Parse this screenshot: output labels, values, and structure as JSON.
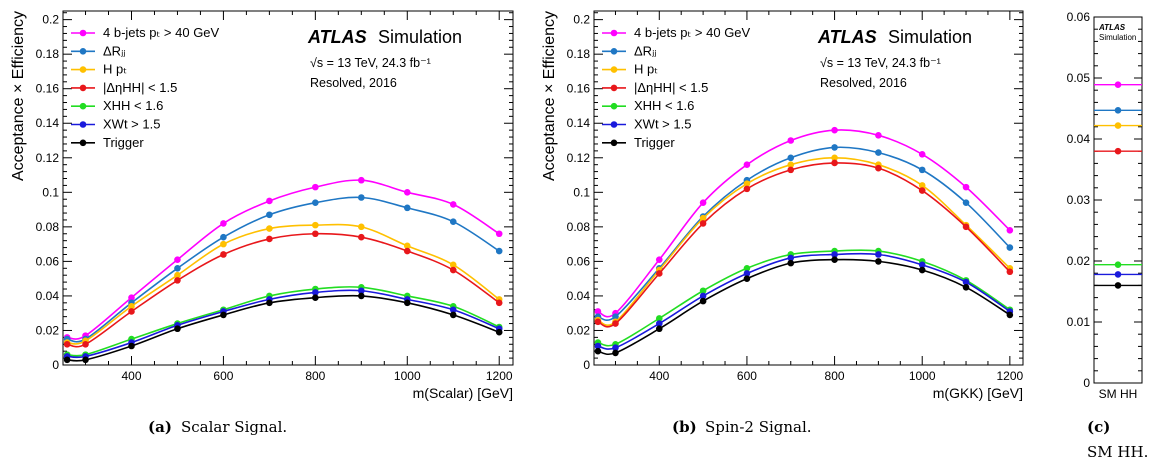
{
  "colors": {
    "magenta": "#ff00ff",
    "lightblue": "#1f77c4",
    "orange": "#ffc000",
    "red": "#e8171b",
    "green": "#22dd22",
    "blue": "#1a1adc",
    "black": "#000000"
  },
  "legend_labels": [
    "4 b-jets pₜ > 40 GeV",
    "ΔRⱼⱼ",
    "H pₜ",
    "|ΔηHH| < 1.5",
    "XHH < 1.6",
    "XWt > 1.5",
    "Trigger"
  ],
  "atlas_label": "ATLAS",
  "simulation_label": "Simulation",
  "energy_text": "√s = 13 TeV, 24.3 fb⁻¹",
  "resolved_text": "Resolved, 2016",
  "captions": {
    "a_tag": "(a)",
    "a_text": "Scalar Signal.",
    "b_tag": "(b)",
    "b_text": "Spin-2 Signal.",
    "c_tag": "(c)",
    "c_text": "SM HH."
  },
  "chart_data": [
    {
      "type": "line",
      "title": "",
      "xlabel": "m(Scalar) [GeV]",
      "ylabel": "Acceptance × Efficiency",
      "xlim": [
        251,
        1230
      ],
      "ylim": [
        0,
        0.205
      ],
      "xticks": [
        400,
        600,
        800,
        1000,
        1200
      ],
      "yticks": [
        0,
        0.02,
        0.04,
        0.06,
        0.08,
        0.1,
        0.12,
        0.14,
        0.16,
        0.18,
        0.2
      ],
      "x": [
        260,
        300,
        400,
        500,
        600,
        700,
        800,
        900,
        1000,
        1100,
        1200
      ],
      "legend": "top-left",
      "series": [
        {
          "name": "4 b-jets pT > 40 GeV",
          "color_key": "magenta",
          "values": [
            0.016,
            0.017,
            0.039,
            0.061,
            0.082,
            0.095,
            0.103,
            0.107,
            0.1,
            0.093,
            0.076
          ]
        },
        {
          "name": "ΔRjj",
          "color_key": "lightblue",
          "values": [
            0.015,
            0.015,
            0.036,
            0.056,
            0.074,
            0.087,
            0.094,
            0.097,
            0.091,
            0.083,
            0.066
          ]
        },
        {
          "name": "H pT",
          "color_key": "orange",
          "values": [
            0.013,
            0.014,
            0.034,
            0.052,
            0.07,
            0.079,
            0.081,
            0.08,
            0.069,
            0.058,
            0.038
          ]
        },
        {
          "name": "|ΔηHH| < 1.5",
          "color_key": "red",
          "values": [
            0.012,
            0.012,
            0.031,
            0.049,
            0.064,
            0.073,
            0.076,
            0.074,
            0.066,
            0.055,
            0.036
          ]
        },
        {
          "name": "XHH < 1.6",
          "color_key": "green",
          "values": [
            0.006,
            0.006,
            0.015,
            0.024,
            0.032,
            0.04,
            0.044,
            0.045,
            0.04,
            0.034,
            0.022
          ]
        },
        {
          "name": "XWt > 1.5",
          "color_key": "blue",
          "values": [
            0.005,
            0.005,
            0.013,
            0.023,
            0.031,
            0.038,
            0.042,
            0.043,
            0.038,
            0.032,
            0.021
          ]
        },
        {
          "name": "Trigger",
          "color_key": "black",
          "values": [
            0.003,
            0.003,
            0.011,
            0.021,
            0.029,
            0.036,
            0.039,
            0.04,
            0.036,
            0.029,
            0.019
          ]
        }
      ]
    },
    {
      "type": "line",
      "title": "",
      "xlabel": "m(GKK) [GeV]",
      "ylabel": "Acceptance × Efficiency",
      "xlim": [
        251,
        1230
      ],
      "ylim": [
        0,
        0.205
      ],
      "xticks": [
        400,
        600,
        800,
        1000,
        1200
      ],
      "yticks": [
        0,
        0.02,
        0.04,
        0.06,
        0.08,
        0.1,
        0.12,
        0.14,
        0.16,
        0.18,
        0.2
      ],
      "x": [
        260,
        300,
        400,
        500,
        600,
        700,
        800,
        900,
        1000,
        1100,
        1200
      ],
      "legend": "top-left",
      "series": [
        {
          "name": "4 b-jets pT > 40 GeV",
          "color_key": "magenta",
          "values": [
            0.031,
            0.03,
            0.061,
            0.094,
            0.116,
            0.13,
            0.136,
            0.133,
            0.122,
            0.103,
            0.078
          ]
        },
        {
          "name": "ΔRjj",
          "color_key": "lightblue",
          "values": [
            0.028,
            0.028,
            0.056,
            0.086,
            0.107,
            0.12,
            0.126,
            0.123,
            0.113,
            0.094,
            0.068
          ]
        },
        {
          "name": "H pT",
          "color_key": "orange",
          "values": [
            0.026,
            0.025,
            0.055,
            0.085,
            0.105,
            0.116,
            0.12,
            0.116,
            0.104,
            0.081,
            0.056
          ]
        },
        {
          "name": "|ΔηHH| < 1.5",
          "color_key": "red",
          "values": [
            0.025,
            0.024,
            0.053,
            0.082,
            0.102,
            0.113,
            0.117,
            0.114,
            0.101,
            0.08,
            0.054
          ]
        },
        {
          "name": "XHH < 1.6",
          "color_key": "green",
          "values": [
            0.013,
            0.012,
            0.027,
            0.043,
            0.056,
            0.064,
            0.066,
            0.066,
            0.06,
            0.049,
            0.032
          ]
        },
        {
          "name": "XWt > 1.5",
          "color_key": "blue",
          "values": [
            0.011,
            0.01,
            0.024,
            0.04,
            0.053,
            0.062,
            0.064,
            0.064,
            0.058,
            0.048,
            0.031
          ]
        },
        {
          "name": "Trigger",
          "color_key": "black",
          "values": [
            0.008,
            0.007,
            0.021,
            0.037,
            0.05,
            0.059,
            0.061,
            0.06,
            0.055,
            0.045,
            0.029
          ]
        }
      ]
    },
    {
      "type": "line",
      "title": "",
      "xlabel": "",
      "ylabel": "",
      "categories": [
        "SM HH"
      ],
      "ylim": [
        0,
        0.06
      ],
      "yticks": [
        0,
        0.01,
        0.02,
        0.03,
        0.04,
        0.05,
        0.06
      ],
      "series": [
        {
          "name": "4 b-jets pT > 40 GeV",
          "color_key": "magenta",
          "values": [
            0.0489
          ]
        },
        {
          "name": "ΔRjj",
          "color_key": "lightblue",
          "values": [
            0.0447
          ]
        },
        {
          "name": "H pT",
          "color_key": "orange",
          "values": [
            0.0422
          ]
        },
        {
          "name": "|ΔηHH| < 1.5",
          "color_key": "red",
          "values": [
            0.038
          ]
        },
        {
          "name": "XHH < 1.6",
          "color_key": "green",
          "values": [
            0.0194
          ]
        },
        {
          "name": "XWt > 1.5",
          "color_key": "blue",
          "values": [
            0.0178
          ]
        },
        {
          "name": "Trigger",
          "color_key": "black",
          "values": [
            0.016
          ]
        }
      ]
    }
  ]
}
